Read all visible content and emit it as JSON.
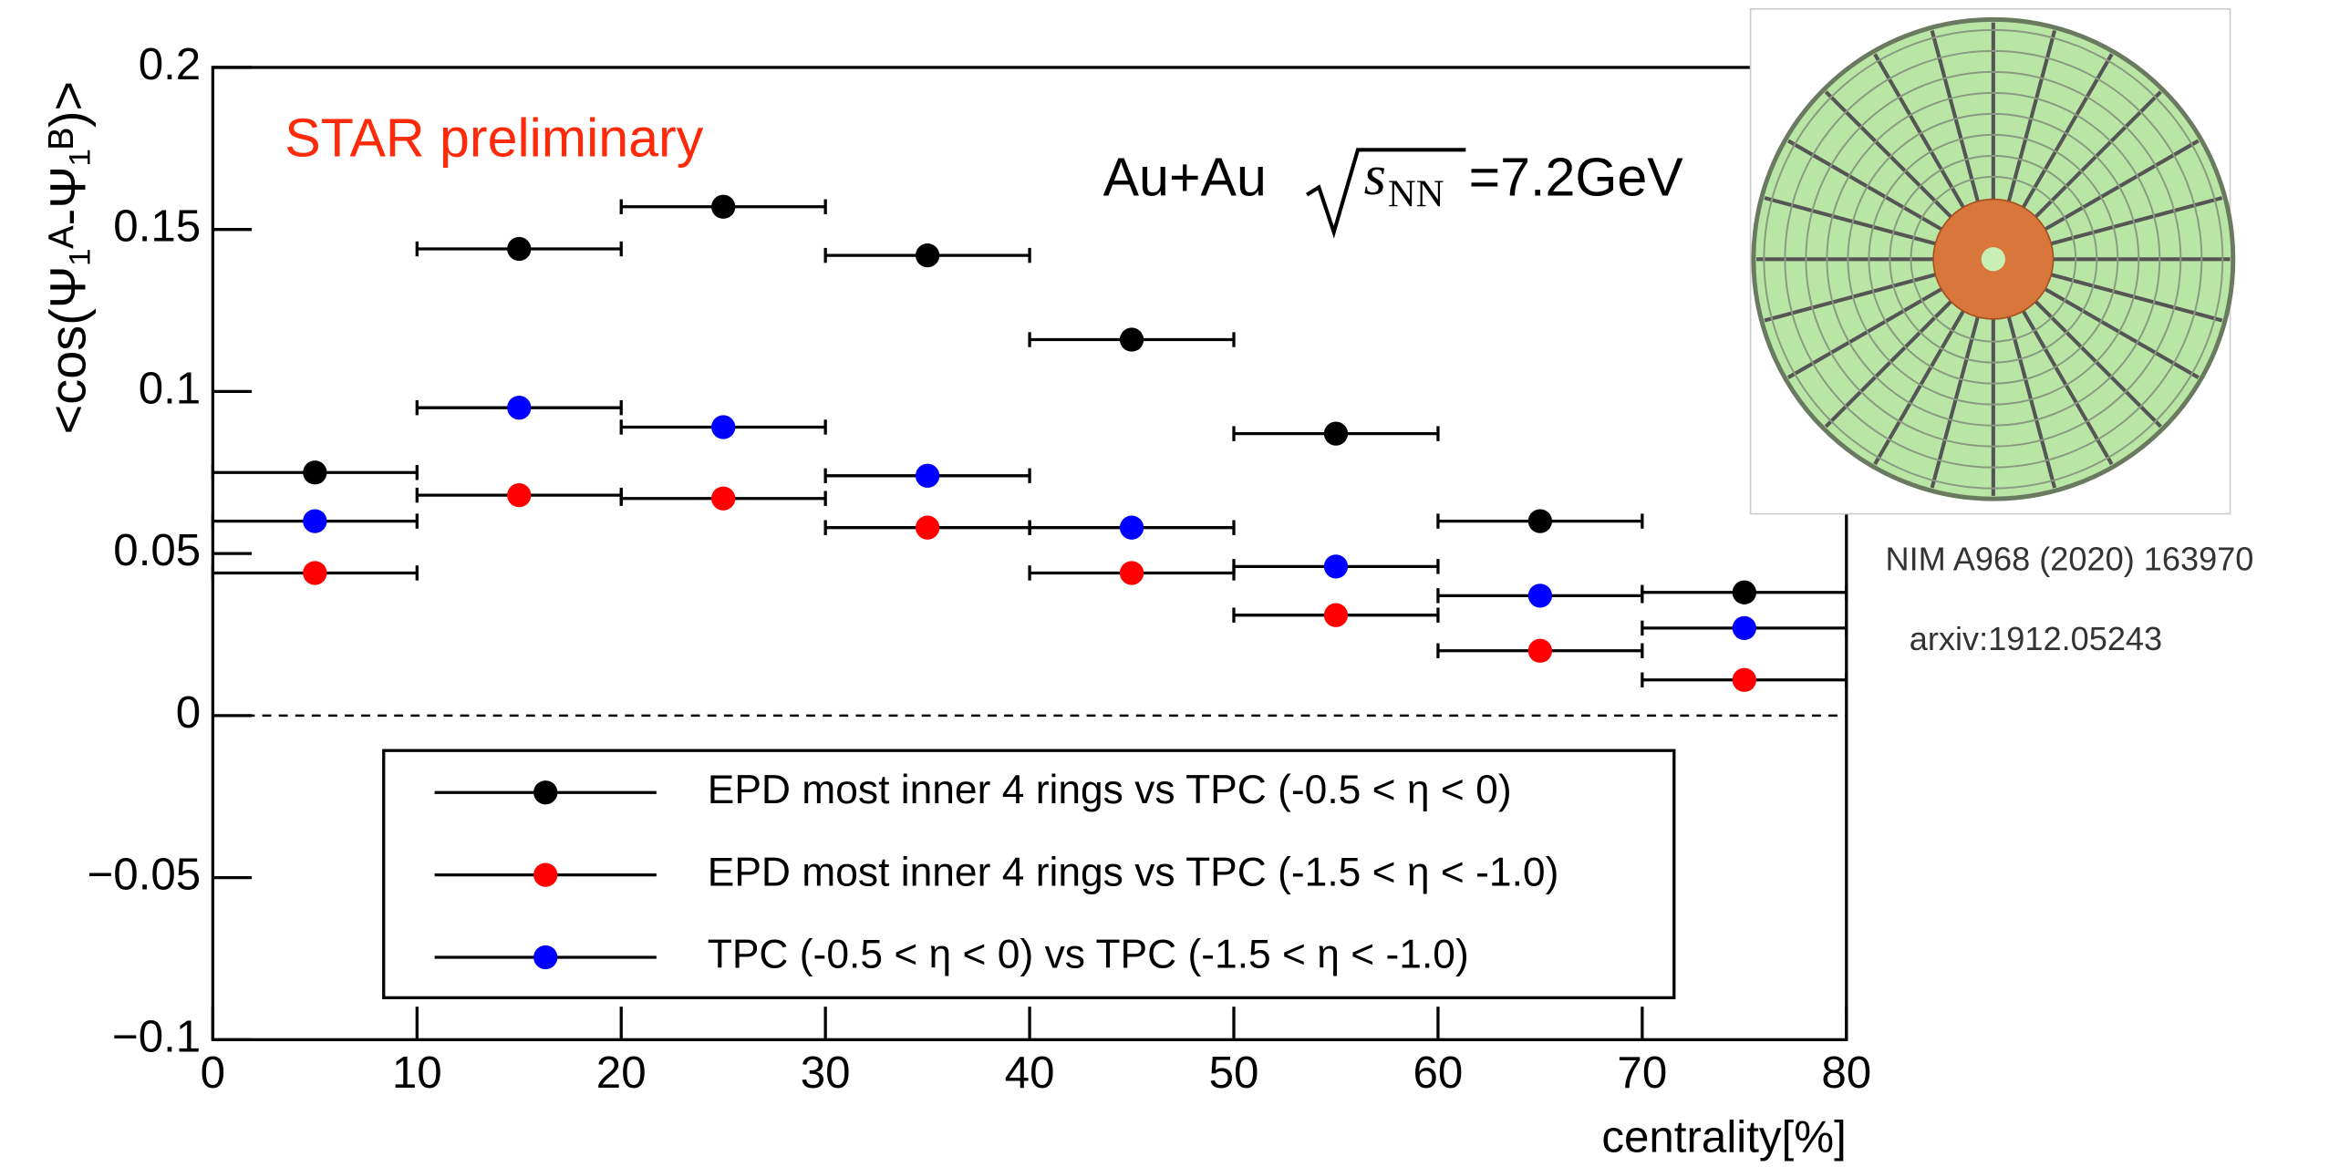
{
  "chart_data": {
    "type": "errorbar",
    "annotation": "STAR preliminary",
    "energy": {
      "system": "Au+Au",
      "variable": "s",
      "subscript": "NN",
      "value": "=7.2GeV"
    },
    "references": [
      "NIM A968 (2020) 163970",
      "arxiv:1912.05243"
    ],
    "y_label": "<cos(Ψ₁ᴬ-Ψ₁ᴮ)>",
    "x_label": "centrality[%]",
    "x": [
      5,
      15,
      25,
      35,
      45,
      55,
      65,
      75
    ],
    "x_error": 5,
    "series": [
      {
        "name": "EPD most inner 4 rings vs TPC (-0.5 < η < 0)",
        "color": "#000000",
        "values": [
          0.075,
          0.144,
          0.157,
          0.142,
          0.116,
          0.087,
          0.06,
          0.038
        ]
      },
      {
        "name": "EPD most inner 4 rings vs TPC (-1.5 < η < -1.0)",
        "color": "#ff0000",
        "values": [
          0.044,
          0.068,
          0.067,
          0.058,
          0.044,
          0.031,
          0.02,
          0.011
        ]
      },
      {
        "name": "TPC (-0.5 < η < 0) vs TPC (-1.5 < η < -1.0)",
        "color": "#0000ff",
        "values": [
          0.06,
          0.095,
          0.089,
          0.074,
          0.058,
          0.046,
          0.037,
          0.027
        ]
      }
    ],
    "xlim": [
      0,
      80
    ],
    "xticks": [
      0,
      10,
      20,
      30,
      40,
      50,
      60,
      70,
      80
    ],
    "ylim": [
      -0.1,
      0.2
    ],
    "yticks": [
      {
        "value": -0.1,
        "label": "−0.1"
      },
      {
        "value": -0.05,
        "label": "−0.05"
      },
      0,
      0.05,
      0.1,
      0.15,
      0.2
    ],
    "zero_line": true
  }
}
